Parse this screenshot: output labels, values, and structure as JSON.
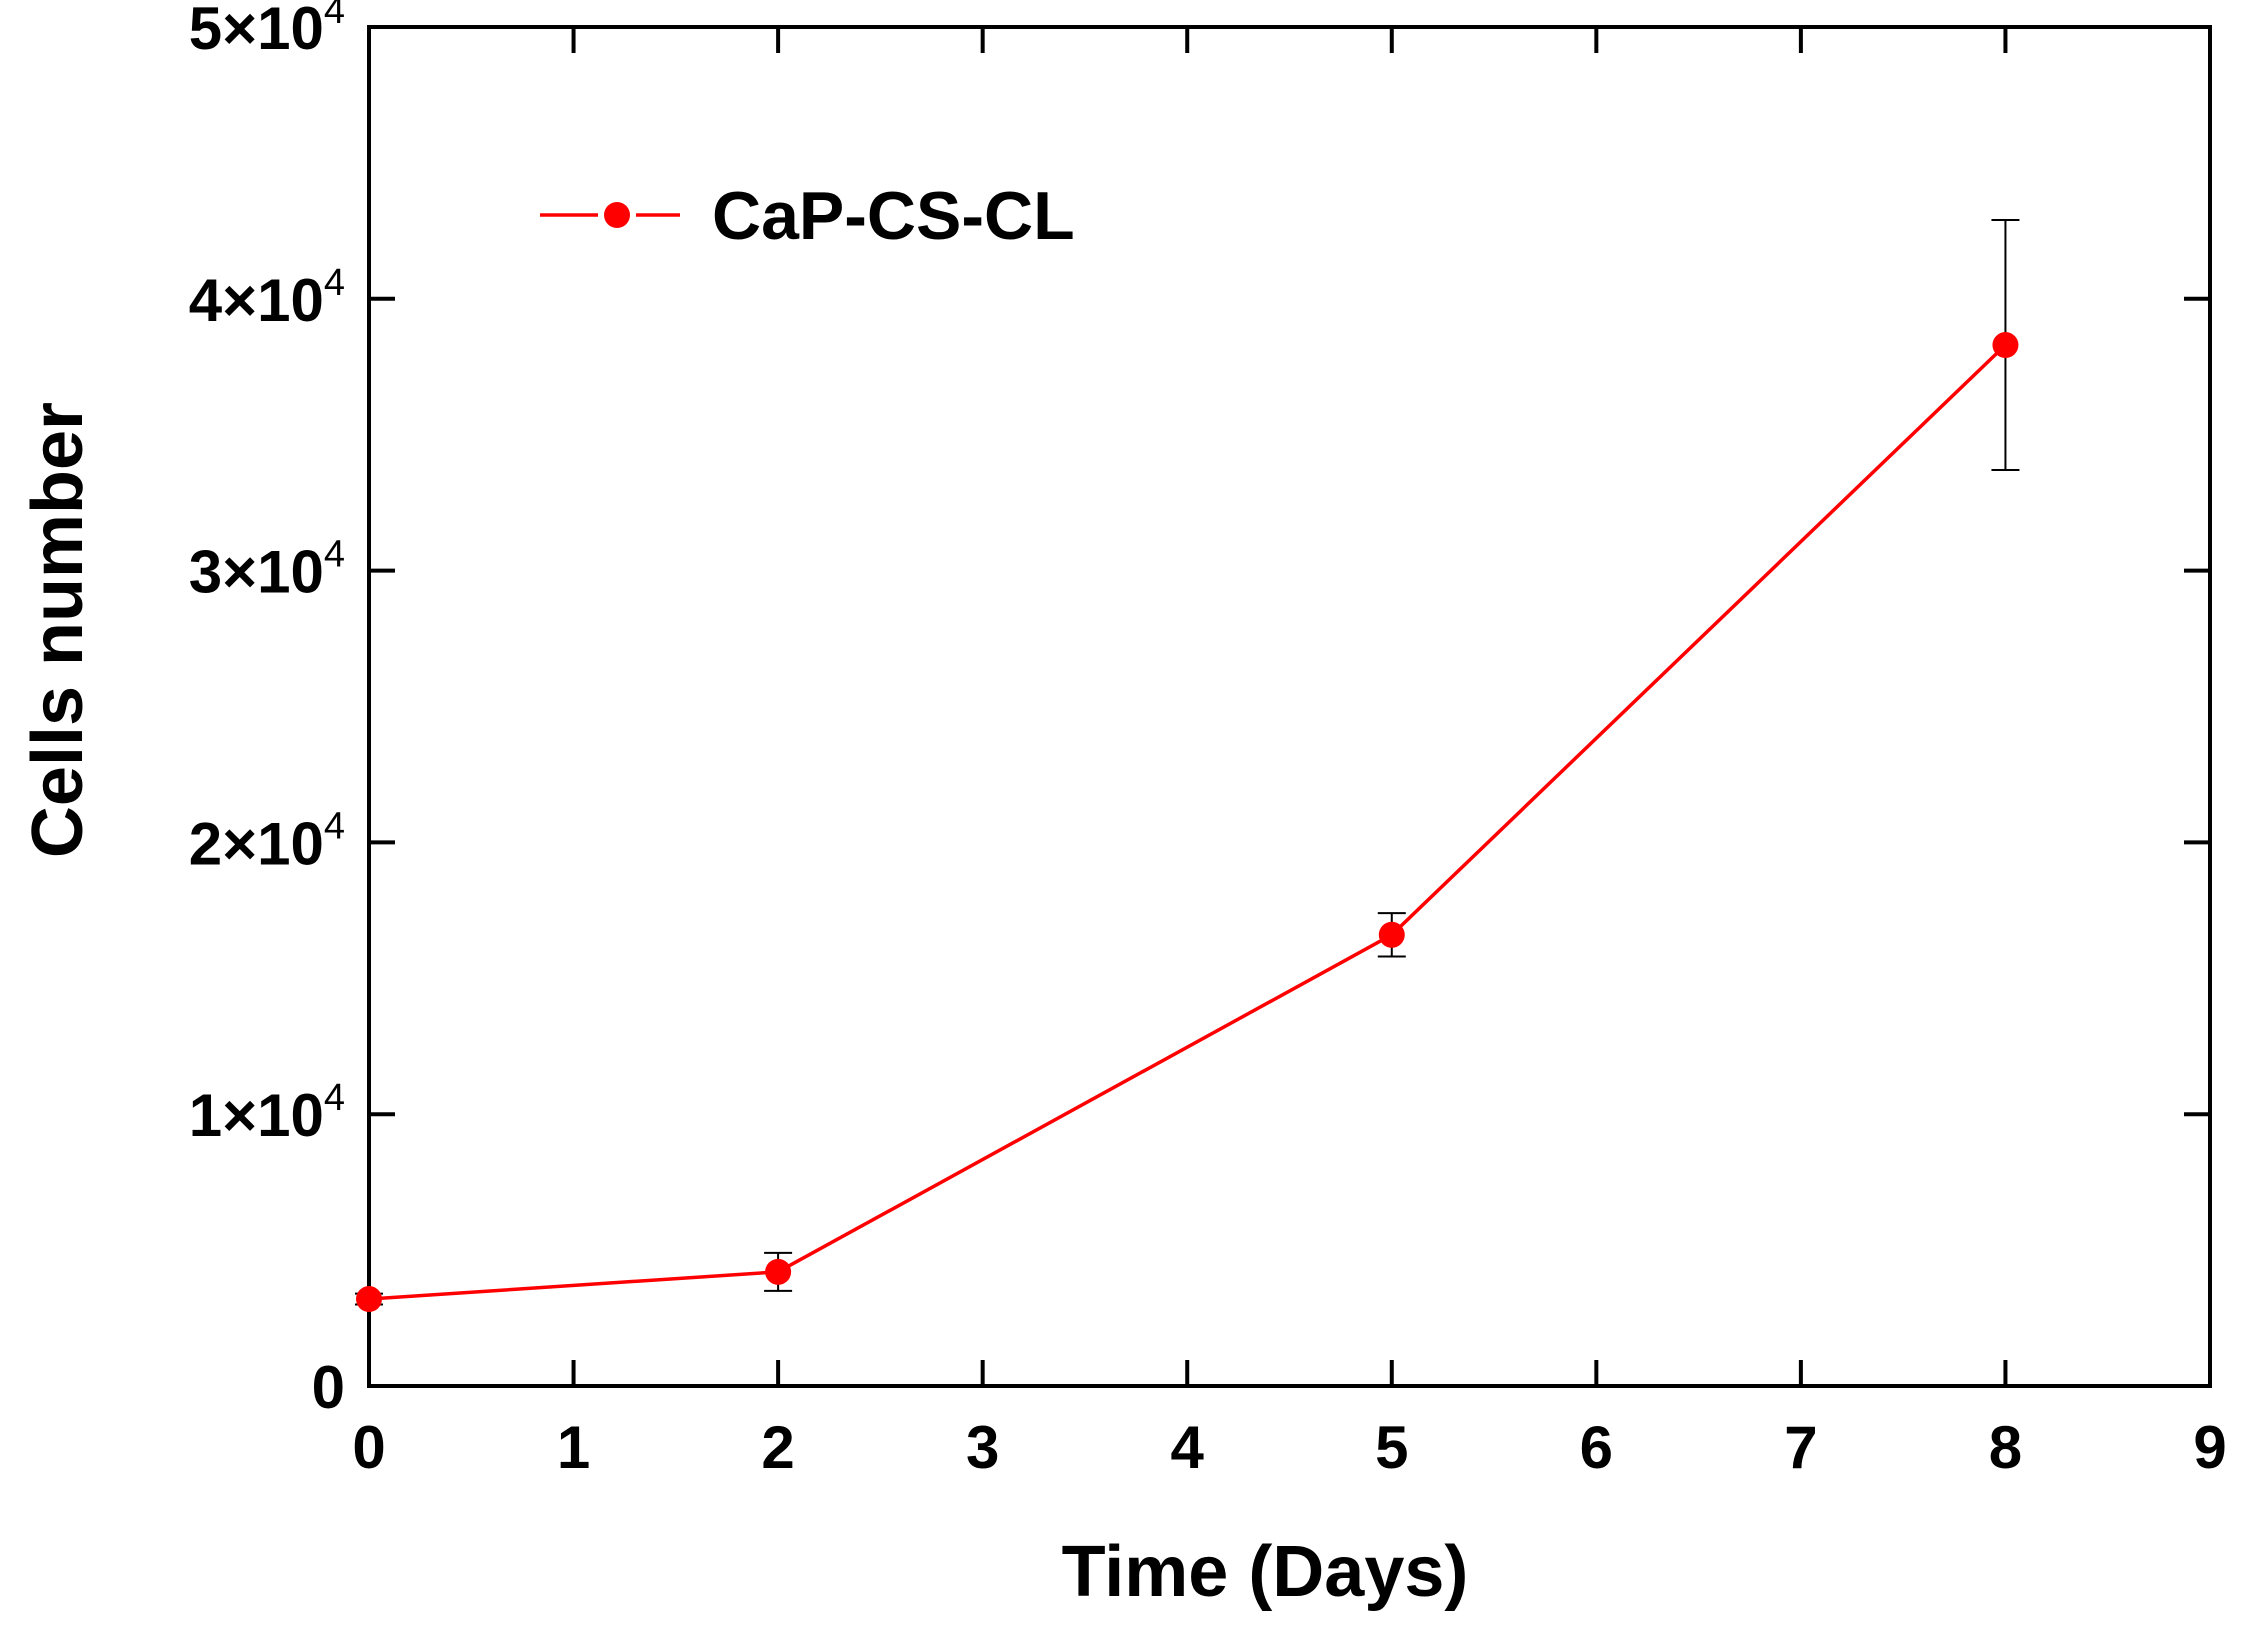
{
  "chart_data": {
    "type": "line",
    "title": "",
    "xlabel": "Time (Days)",
    "ylabel": "Cells number",
    "xlim": [
      0,
      9
    ],
    "ylim": [
      0,
      50000
    ],
    "x_ticks": [
      0,
      1,
      2,
      3,
      4,
      5,
      6,
      7,
      8,
      9
    ],
    "x_tick_labels": [
      "0",
      "1",
      "2",
      "3",
      "4",
      "5",
      "6",
      "7",
      "8",
      "9"
    ],
    "y_ticks": [
      0,
      10000,
      20000,
      30000,
      40000,
      50000
    ],
    "y_tick_labels": [
      {
        "mantissa": "0",
        "exponent": ""
      },
      {
        "mantissa": "1×10",
        "exponent": "4"
      },
      {
        "mantissa": "2×10",
        "exponent": "4"
      },
      {
        "mantissa": "3×10",
        "exponent": "4"
      },
      {
        "mantissa": "4×10",
        "exponent": "4"
      },
      {
        "mantissa": "5×10",
        "exponent": "4"
      }
    ],
    "grid": false,
    "legend_position": "top-left",
    "series": [
      {
        "name": "CaP-CS-CL",
        "color": "#ff0000",
        "marker": "circle",
        "x": [
          0,
          2,
          5,
          8
        ],
        "y": [
          3200,
          4200,
          16600,
          38300
        ],
        "error": [
          200,
          700,
          800,
          4600
        ]
      }
    ]
  }
}
